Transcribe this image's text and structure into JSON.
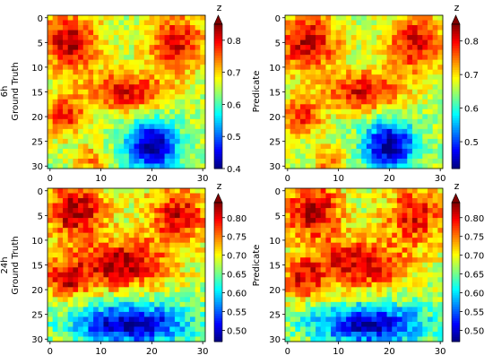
{
  "chart_data": [
    {
      "type": "heatmap",
      "panel": "6h-ground-truth",
      "ylabel_lines": [
        "6h",
        "Ground Truth"
      ],
      "xlim": [
        0,
        30
      ],
      "ylim": [
        30,
        0
      ],
      "xticks": [
        "0",
        "10",
        "20",
        "30"
      ],
      "yticks": [
        "0",
        "5",
        "10",
        "15",
        "20",
        "25",
        "30"
      ],
      "colorbar": {
        "label": "z",
        "vmin": 0.4,
        "vmax": 0.85,
        "ticks": [
          "0.4",
          "0.5",
          "0.6",
          "0.7",
          "0.8"
        ],
        "extend": "max"
      },
      "field": {
        "grid_size": 31,
        "blobs": [
          {
            "cx": 4,
            "cy": 5,
            "r": 6,
            "amp": 0.18
          },
          {
            "cx": 25,
            "cy": 5,
            "r": 6,
            "amp": 0.16
          },
          {
            "cx": 15,
            "cy": 15,
            "rx": 8,
            "ry": 4,
            "amp": 0.16
          },
          {
            "cx": 3,
            "cy": 20,
            "r": 4,
            "amp": 0.14
          },
          {
            "cx": 20,
            "cy": 26,
            "r": 5,
            "amp": -0.25
          },
          {
            "cx": 8,
            "cy": 29,
            "r": 3,
            "amp": 0.1
          }
        ]
      }
    },
    {
      "type": "heatmap",
      "panel": "6h-predicate",
      "ylabel_lines": [
        "Predicate"
      ],
      "xlim": [
        0,
        30
      ],
      "ylim": [
        30,
        0
      ],
      "xticks": [
        "0",
        "10",
        "20",
        "30"
      ],
      "yticks": [
        "0",
        "5",
        "10",
        "15",
        "20",
        "25",
        "30"
      ],
      "colorbar": {
        "label": "z",
        "vmin": 0.42,
        "vmax": 0.85,
        "ticks": [
          "0.5",
          "0.6",
          "0.7",
          "0.8"
        ],
        "extend": "max"
      },
      "field": {
        "grid_size": 31,
        "blobs": [
          {
            "cx": 4,
            "cy": 5,
            "r": 6,
            "amp": 0.17
          },
          {
            "cx": 25,
            "cy": 5,
            "r": 6,
            "amp": 0.15
          },
          {
            "cx": 15,
            "cy": 15,
            "rx": 8,
            "ry": 4,
            "amp": 0.15
          },
          {
            "cx": 3,
            "cy": 20,
            "r": 4,
            "amp": 0.13
          },
          {
            "cx": 20,
            "cy": 26,
            "r": 5,
            "amp": -0.23
          },
          {
            "cx": 8,
            "cy": 29,
            "r": 3,
            "amp": 0.09
          }
        ]
      }
    },
    {
      "type": "heatmap",
      "panel": "24h-ground-truth",
      "ylabel_lines": [
        "24h",
        "Ground Truth"
      ],
      "xlim": [
        0,
        30
      ],
      "ylim": [
        30,
        0
      ],
      "xticks": [
        "0",
        "10",
        "20",
        "30"
      ],
      "yticks": [
        "0",
        "5",
        "10",
        "15",
        "20",
        "25",
        "30"
      ],
      "colorbar": {
        "label": "z",
        "vmin": 0.47,
        "vmax": 0.84,
        "ticks": [
          "0.50",
          "0.55",
          "0.60",
          "0.65",
          "0.70",
          "0.75",
          "0.80"
        ],
        "extend": "max"
      },
      "field": {
        "grid_size": 31,
        "blobs": [
          {
            "cx": 5,
            "cy": 4,
            "r": 6,
            "amp": 0.15
          },
          {
            "cx": 25,
            "cy": 5,
            "r": 6,
            "amp": 0.13
          },
          {
            "cx": 14,
            "cy": 15,
            "rx": 9,
            "ry": 5,
            "amp": 0.15
          },
          {
            "cx": 3,
            "cy": 18,
            "r": 4,
            "amp": 0.12
          },
          {
            "cx": 16,
            "cy": 27,
            "rx": 11,
            "ry": 4,
            "amp": -0.2
          }
        ]
      }
    },
    {
      "type": "heatmap",
      "panel": "24h-predicate",
      "ylabel_lines": [
        "Predicate"
      ],
      "xlim": [
        0,
        30
      ],
      "ylim": [
        30,
        0
      ],
      "xticks": [
        "0",
        "10",
        "20",
        "30"
      ],
      "yticks": [
        "0",
        "5",
        "10",
        "15",
        "20",
        "25",
        "30"
      ],
      "colorbar": {
        "label": "z",
        "vmin": 0.47,
        "vmax": 0.84,
        "ticks": [
          "0.50",
          "0.55",
          "0.60",
          "0.65",
          "0.70",
          "0.75",
          "0.80"
        ],
        "extend": "max"
      },
      "field": {
        "grid_size": 31,
        "blobs": [
          {
            "cx": 5,
            "cy": 4,
            "r": 6,
            "amp": 0.14
          },
          {
            "cx": 25,
            "cy": 5,
            "r": 6,
            "amp": 0.12
          },
          {
            "cx": 14,
            "cy": 15,
            "rx": 9,
            "ry": 5,
            "amp": 0.14
          },
          {
            "cx": 3,
            "cy": 18,
            "r": 4,
            "amp": 0.11
          },
          {
            "cx": 16,
            "cy": 27,
            "rx": 11,
            "ry": 4,
            "amp": -0.19
          }
        ]
      }
    }
  ]
}
